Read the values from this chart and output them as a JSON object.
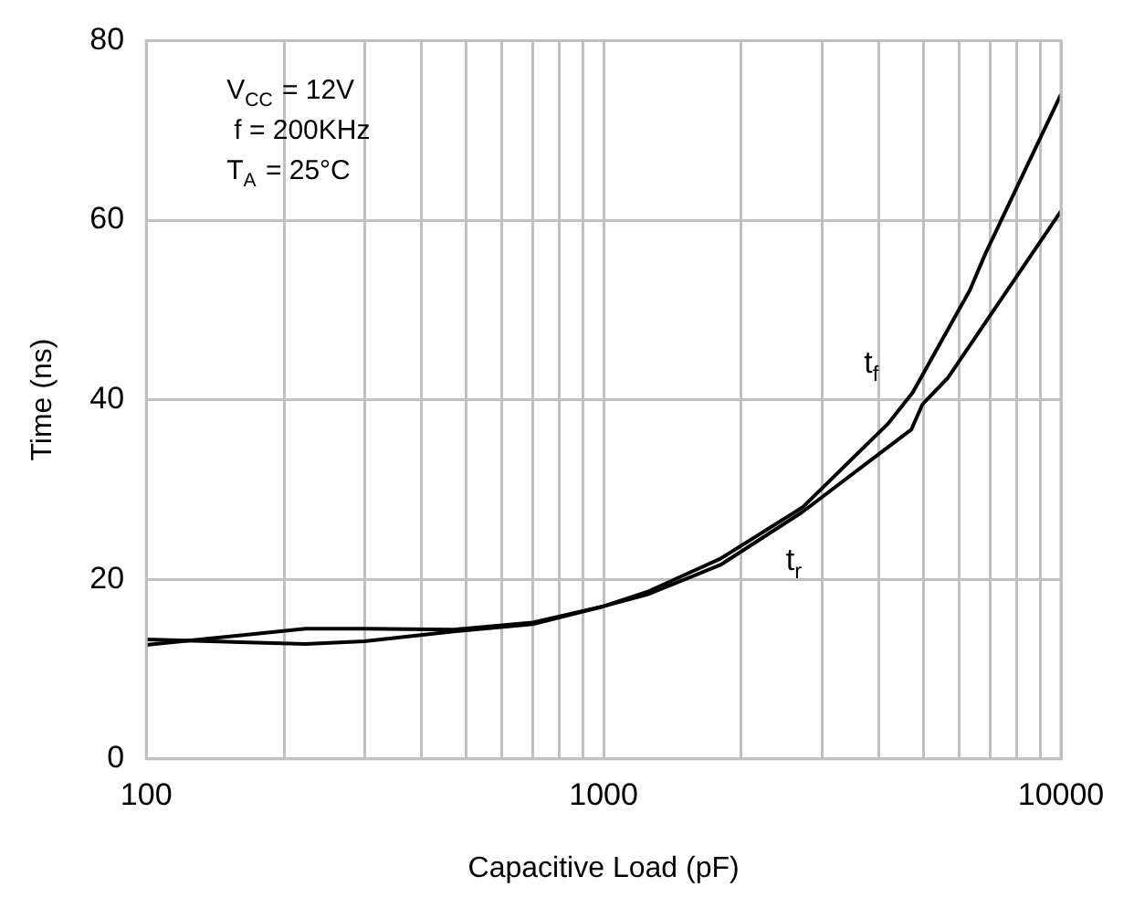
{
  "chart_data": {
    "type": "line",
    "xlabel": "Capacitive Load (pF)",
    "ylabel": "Time (ns)",
    "log": "x",
    "xlim": [
      100,
      10000
    ],
    "ylim": [
      0,
      80
    ],
    "xticks": [
      100,
      {
        "value": 200,
        "label": null
      },
      {
        "value": 300,
        "label": null
      },
      {
        "value": 400,
        "label": null
      },
      {
        "value": 500,
        "label": null
      },
      {
        "value": 600,
        "label": null
      },
      {
        "value": 700,
        "label": null
      },
      {
        "value": 800,
        "label": null
      },
      {
        "value": 900,
        "label": null
      },
      1000,
      {
        "value": 2000,
        "label": null
      },
      {
        "value": 3000,
        "label": null
      },
      {
        "value": 4000,
        "label": null
      },
      {
        "value": 5000,
        "label": null
      },
      {
        "value": 6000,
        "label": null
      },
      {
        "value": 7000,
        "label": null
      },
      {
        "value": 8000,
        "label": null
      },
      {
        "value": 9000,
        "label": null
      },
      10000
    ],
    "yticks": [
      0,
      20,
      40,
      60,
      80
    ],
    "grid": true,
    "legend": false,
    "marker": "none",
    "line_style": "solid",
    "annotations": [
      "V$_{CC}$ = 12V",
      "f = 200KHz",
      "T$_{A}$ = 25°C"
    ],
    "series": [
      {
        "name": "t$_{f}$",
        "color": "#000000",
        "x": [
          100,
          223,
          300,
          470,
          700,
          1000,
          1245,
          1800,
          2720,
          4180,
          4740,
          6320,
          6840,
          10000
        ],
        "values": [
          13.3,
          12.8,
          13.1,
          14.2,
          15,
          17,
          18.6,
          22.3,
          28,
          37.3,
          40.8,
          52.2,
          56.3,
          74
        ]
      },
      {
        "name": "t$_{r}$",
        "color": "#000000",
        "x": [
          100,
          223,
          300,
          470,
          700,
          1000,
          1245,
          1800,
          2720,
          4710,
          4980,
          5650,
          10000
        ],
        "values": [
          12.7,
          14.5,
          14.5,
          14.4,
          15.2,
          17,
          18.3,
          21.6,
          27.5,
          36.7,
          39.5,
          42.4,
          61
        ]
      }
    ]
  }
}
